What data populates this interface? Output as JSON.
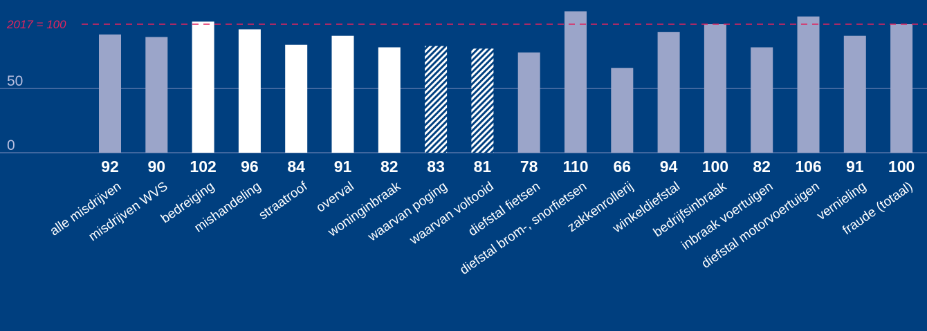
{
  "colors": {
    "background": "#003f7f",
    "bar_light": "#9ba5c9",
    "bar_white": "#ffffff",
    "reference_line": "#e0245e",
    "axis_text": "#b8bfe0",
    "label_text": "#ffffff"
  },
  "reference_label": "2017 = 100",
  "chart_data": {
    "type": "bar",
    "categories": [
      "alle misdrijven",
      "misdrijven WVS",
      "bedreiging",
      "mishandeling",
      "straatroof",
      "overval",
      "woninginbraak",
      "waarvan poging",
      "waarvan voltooid",
      "diefstal fietsen",
      "diefstal brom-, snorfietsen",
      "zakkenrollerij",
      "winkeldiefstal",
      "bedrijfsinbraak",
      "inbraak voertuigen",
      "diefstal motorvoertuigen",
      "vernieling",
      "fraude (totaal)"
    ],
    "values": [
      92,
      90,
      102,
      96,
      84,
      91,
      82,
      83,
      81,
      78,
      110,
      66,
      94,
      100,
      82,
      106,
      91,
      100
    ],
    "styles": [
      "light",
      "light",
      "white",
      "white",
      "white",
      "white",
      "white",
      "hatched",
      "hatched",
      "light",
      "light",
      "light",
      "light",
      "light",
      "light",
      "light",
      "light",
      "light"
    ],
    "value_labels": [
      "92",
      "90",
      "102",
      "96",
      "84",
      "91",
      "82",
      "83",
      "81",
      "78",
      "110",
      "66",
      "94",
      "100",
      "82",
      "106",
      "91",
      "100"
    ],
    "y_ticks": [
      {
        "value": 0,
        "label": "0"
      },
      {
        "value": 50,
        "label": "50"
      }
    ],
    "reference_value": 100,
    "ylim": [
      0,
      110
    ],
    "title": "",
    "xlabel": "",
    "ylabel": ""
  }
}
